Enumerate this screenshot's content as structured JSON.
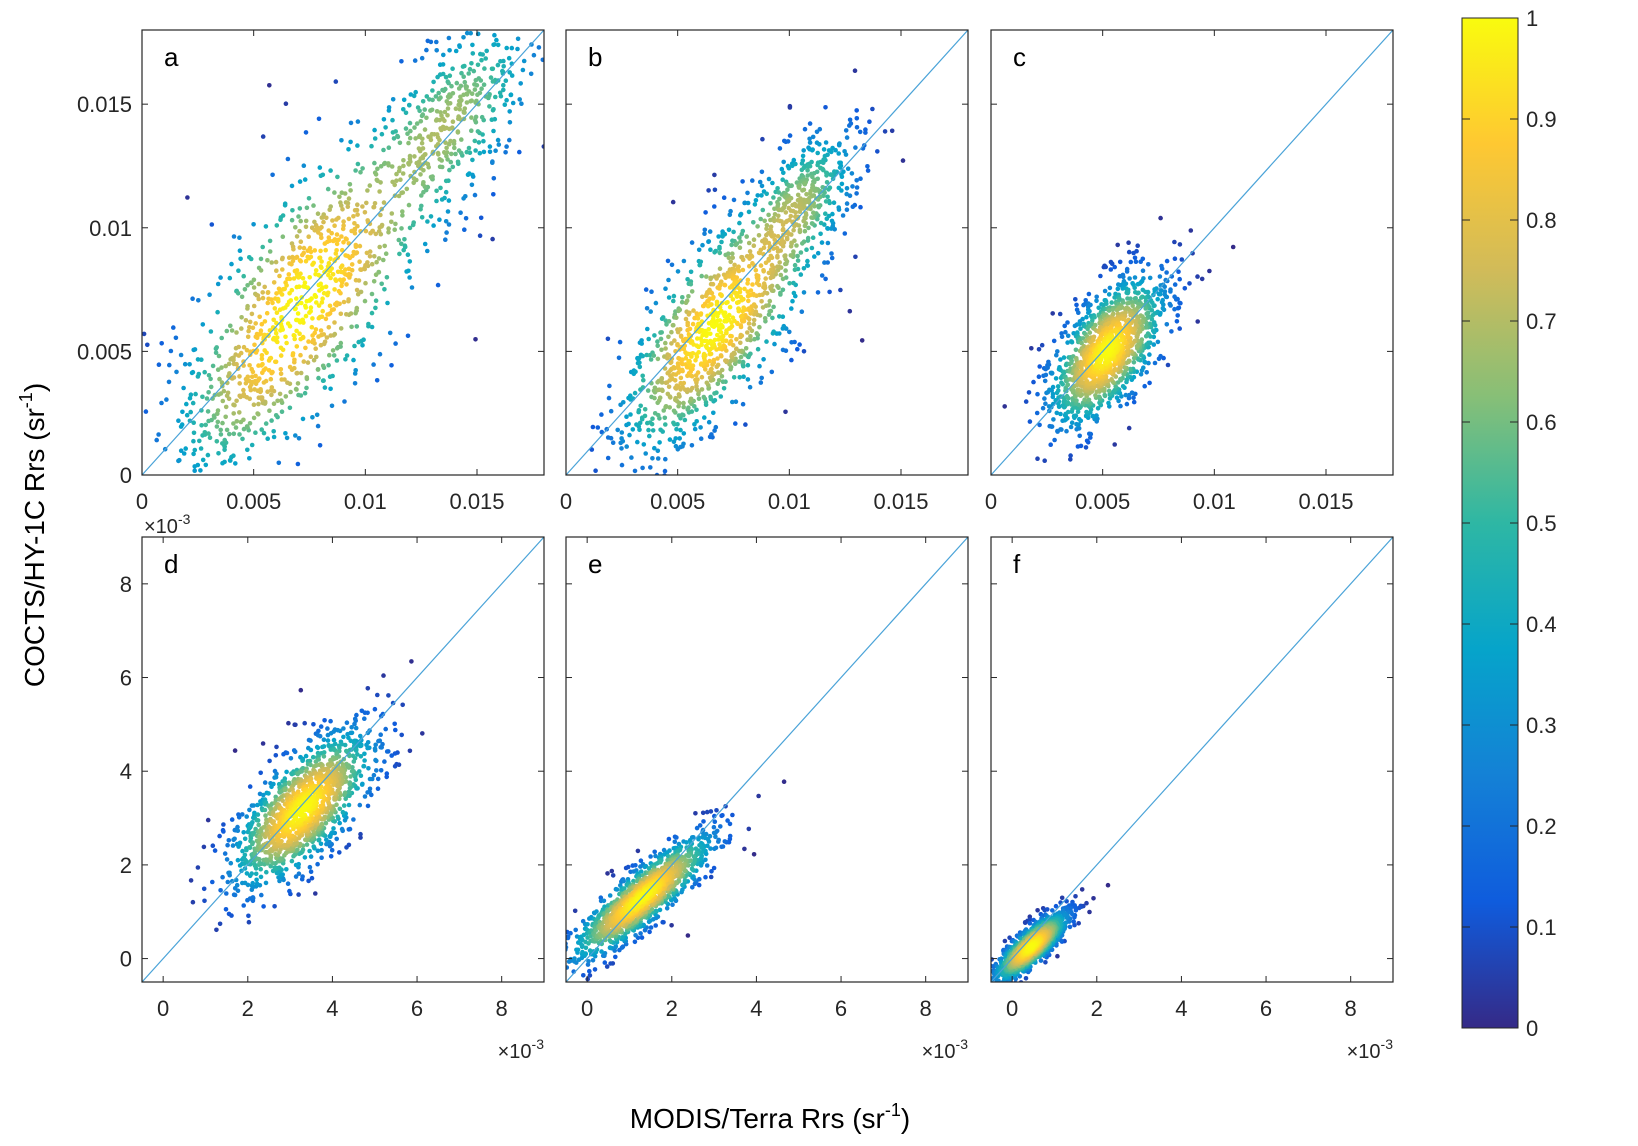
{
  "figure": {
    "xlabel_prefix": "MODIS/Terra Rrs (sr",
    "xlabel_sup": "-1",
    "xlabel_suffix": ")",
    "ylabel_prefix": "COCTS/HY-1C Rrs (sr",
    "ylabel_sup": "-1",
    "ylabel_suffix": ")",
    "exponent_base": "×10",
    "exponent_power": "-3"
  },
  "colorbar": {
    "ticks": [
      "0",
      "0.1",
      "0.2",
      "0.3",
      "0.4",
      "0.5",
      "0.6",
      "0.7",
      "0.8",
      "0.9",
      "1"
    ],
    "range": [
      0,
      1
    ],
    "colormap": "parula",
    "colors": [
      "#352a87",
      "#0f5cdd",
      "#1481d6",
      "#06a4ca",
      "#2eb7a4",
      "#87bf77",
      "#d1bb59",
      "#fec832",
      "#f9fb0e"
    ]
  },
  "line_color": "#4aa3d8",
  "chart_data": [
    {
      "type": "scatter",
      "label": "a",
      "xlim": [
        0,
        0.018
      ],
      "ylim": [
        0,
        0.018
      ],
      "xticks": [
        "0",
        "0.005",
        "0.01",
        "0.015"
      ],
      "yticks": [
        "0",
        "0.005",
        "0.01",
        "0.015"
      ],
      "one_to_one_line": true,
      "grid": false,
      "density_core": {
        "x": 0.0075,
        "y": 0.0075
      },
      "spread": {
        "along": 0.004,
        "across": 0.0018
      },
      "clusters": [
        {
          "x": 0.0075,
          "y": 0.0075,
          "sx": 0.003,
          "sy": 0.0028,
          "w": 0.55
        },
        {
          "x": 0.014,
          "y": 0.0145,
          "sx": 0.0022,
          "sy": 0.002,
          "w": 0.3
        },
        {
          "x": 0.0045,
          "y": 0.003,
          "sx": 0.0022,
          "sy": 0.0018,
          "w": 0.15
        }
      ],
      "exponent_shown": true
    },
    {
      "type": "scatter",
      "label": "b",
      "xlim": [
        0,
        0.018
      ],
      "ylim": [
        0,
        0.018
      ],
      "xticks": [
        "0",
        "0.005",
        "0.01",
        "0.015"
      ],
      "yticks": [],
      "one_to_one_line": true,
      "grid": false,
      "clusters": [
        {
          "x": 0.0068,
          "y": 0.0062,
          "sx": 0.0022,
          "sy": 0.002,
          "w": 0.6
        },
        {
          "x": 0.0105,
          "y": 0.011,
          "sx": 0.0015,
          "sy": 0.0015,
          "w": 0.3
        },
        {
          "x": 0.0045,
          "y": 0.003,
          "sx": 0.0015,
          "sy": 0.0015,
          "w": 0.1
        }
      ],
      "exponent_shown": false
    },
    {
      "type": "scatter",
      "label": "c",
      "xlim": [
        0,
        0.018
      ],
      "ylim": [
        0,
        0.018
      ],
      "xticks": [
        "0",
        "0.005",
        "0.01",
        "0.015"
      ],
      "yticks": [],
      "one_to_one_line": true,
      "grid": false,
      "clusters": [
        {
          "x": 0.0052,
          "y": 0.005,
          "sx": 0.0014,
          "sy": 0.0013,
          "w": 1.0
        }
      ],
      "exponent_shown": false
    },
    {
      "type": "scatter",
      "label": "d",
      "xlim": [
        -0.5,
        9
      ],
      "ylim": [
        -0.5,
        9
      ],
      "xticks": [
        "0",
        "2",
        "4",
        "6",
        "8"
      ],
      "yticks": [
        "0",
        "2",
        "4",
        "6",
        "8"
      ],
      "one_to_one_line": true,
      "grid": false,
      "clusters": [
        {
          "x": 3.3,
          "y": 3.2,
          "sx": 0.9,
          "sy": 0.65,
          "w": 1.0
        }
      ],
      "exponent_shown": true
    },
    {
      "type": "scatter",
      "label": "e",
      "xlim": [
        -0.5,
        9
      ],
      "ylim": [
        -0.5,
        9
      ],
      "xticks": [
        "0",
        "2",
        "4",
        "6",
        "8"
      ],
      "yticks": [],
      "one_to_one_line": true,
      "grid": false,
      "clusters": [
        {
          "x": 1.3,
          "y": 1.3,
          "sx": 0.9,
          "sy": 0.35,
          "w": 1.0
        }
      ],
      "exponent_shown": true
    },
    {
      "type": "scatter",
      "label": "f",
      "xlim": [
        -0.5,
        9
      ],
      "ylim": [
        -0.5,
        9
      ],
      "xticks": [
        "0",
        "2",
        "4",
        "6",
        "8"
      ],
      "yticks": [],
      "one_to_one_line": true,
      "grid": false,
      "clusters": [
        {
          "x": 0.45,
          "y": 0.25,
          "sx": 0.45,
          "sy": 0.22,
          "w": 1.0
        }
      ],
      "exponent_shown": true
    }
  ]
}
